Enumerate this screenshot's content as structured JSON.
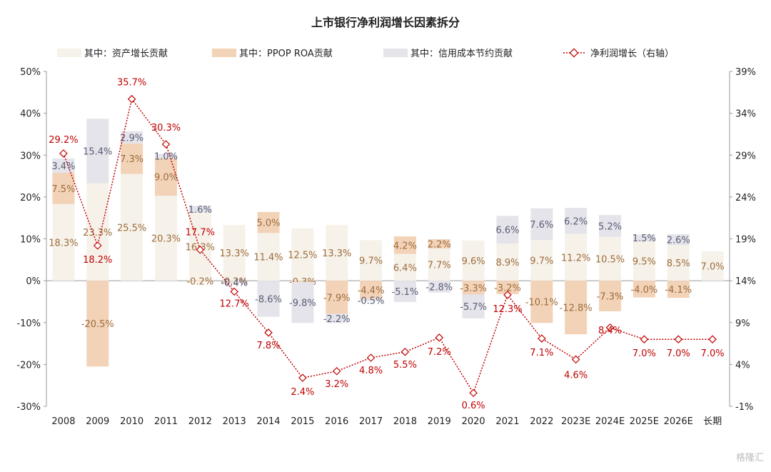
{
  "chart_data": {
    "type": "bar",
    "stacked": true,
    "title": "上市银行净利润增长因素拆分",
    "categories": [
      "2008",
      "2009",
      "2010",
      "2011",
      "2012",
      "2013",
      "2014",
      "2015",
      "2016",
      "2017",
      "2018",
      "2019",
      "2020",
      "2021",
      "2022",
      "2023E",
      "2024E",
      "2025E",
      "2026E",
      "长期"
    ],
    "series": [
      {
        "name": "其中：资产增长贡献",
        "color": "#f6f2ea",
        "axis": "left",
        "values": [
          18.3,
          23.3,
          25.5,
          20.3,
          16.3,
          13.3,
          11.4,
          12.5,
          13.3,
          9.7,
          6.4,
          7.7,
          9.6,
          8.9,
          9.7,
          11.2,
          10.5,
          9.5,
          8.5,
          7.0
        ],
        "labels": [
          "18.3%",
          "23.3%",
          "25.5%",
          "20.3%",
          "16.3%",
          "13.3%",
          "11.4%",
          "12.5%",
          "13.3%",
          "9.7%",
          "6.4%",
          "7.7%",
          "9.6%",
          "8.9%",
          "9.7%",
          "11.2%",
          "10.5%",
          "9.5%",
          "8.5%",
          "7.0%"
        ]
      },
      {
        "name": "其中：PPOP ROA贡献",
        "color": "#f2d3b8",
        "axis": "left",
        "values": [
          7.5,
          -20.5,
          7.3,
          9.0,
          -0.2,
          -0.2,
          5.0,
          -0.3,
          -7.9,
          -4.4,
          4.2,
          2.2,
          -3.3,
          -3.2,
          -10.1,
          -12.8,
          -7.3,
          -4.0,
          -4.1,
          null
        ],
        "labels": [
          "7.5%",
          "-20.5%",
          "7.3%",
          "9.0%",
          "-0.2%",
          "-0.2%",
          "5.0%",
          "-0.3%",
          "-7.9%",
          "-4.4%",
          "4.2%",
          "2.2%",
          "-3.3%",
          "-3.2%",
          "-10.1%",
          "-12.8%",
          "-7.3%",
          "-4.0%",
          "-4.1%",
          ""
        ]
      },
      {
        "name": "其中：信用成本节约贡献",
        "color": "#e4e4ea",
        "axis": "left",
        "values": [
          3.4,
          15.4,
          2.9,
          1.0,
          1.6,
          -0.4,
          -8.6,
          -9.8,
          -2.2,
          -0.5,
          -5.1,
          -2.8,
          -5.7,
          6.6,
          7.6,
          6.2,
          5.2,
          1.5,
          2.6,
          null
        ],
        "labels": [
          "3.4%",
          "15.4%",
          "2.9%",
          "1.0%",
          "1.6%",
          "-0.4%",
          "-8.6%",
          "-9.8%",
          "-2.2%",
          "-0.5%",
          "-5.1%",
          "-2.8%",
          "-5.7%",
          "6.6%",
          "7.6%",
          "6.2%",
          "5.2%",
          "1.5%",
          "2.6%",
          ""
        ]
      },
      {
        "name": "净利润增长（右轴）",
        "type": "line",
        "color": "#c00000",
        "axis": "right",
        "values": [
          29.2,
          18.2,
          35.7,
          30.3,
          17.7,
          12.7,
          7.8,
          2.4,
          3.2,
          4.8,
          5.5,
          7.2,
          0.6,
          12.3,
          7.1,
          4.6,
          8.4,
          7.0,
          7.0,
          7.0
        ],
        "labels": [
          "29.2%",
          "18.2%",
          "35.7%",
          "30.3%",
          "17.7%",
          "12.7%",
          "7.8%",
          "2.4%",
          "3.2%",
          "4.8%",
          "5.5%",
          "7.2%",
          "0.6%",
          "12.3%",
          "7.1%",
          "4.6%",
          "8.4%",
          "7.0%",
          "7.0%",
          "7.0%"
        ]
      }
    ],
    "y_left": {
      "min": -30,
      "max": 50,
      "ticks": [
        -30,
        -20,
        -10,
        0,
        10,
        20,
        30,
        40,
        50
      ],
      "tick_labels": [
        "-30%",
        "-20%",
        "-10%",
        "0%",
        "10%",
        "20%",
        "30%",
        "40%",
        "50%"
      ]
    },
    "y_right": {
      "min": -1,
      "max": 39,
      "ticks": [
        -1,
        4,
        9,
        14,
        19,
        24,
        29,
        34,
        39
      ],
      "tick_labels": [
        "-1%",
        "4%",
        "9%",
        "14%",
        "19%",
        "24%",
        "29%",
        "34%",
        "39%"
      ]
    },
    "legend_position": "top",
    "grid": false,
    "bar_label_color": "#9c6b3a",
    "credit_label_color": "#595c75",
    "line_label_color": "#c00000"
  },
  "watermark": "格隆汇"
}
